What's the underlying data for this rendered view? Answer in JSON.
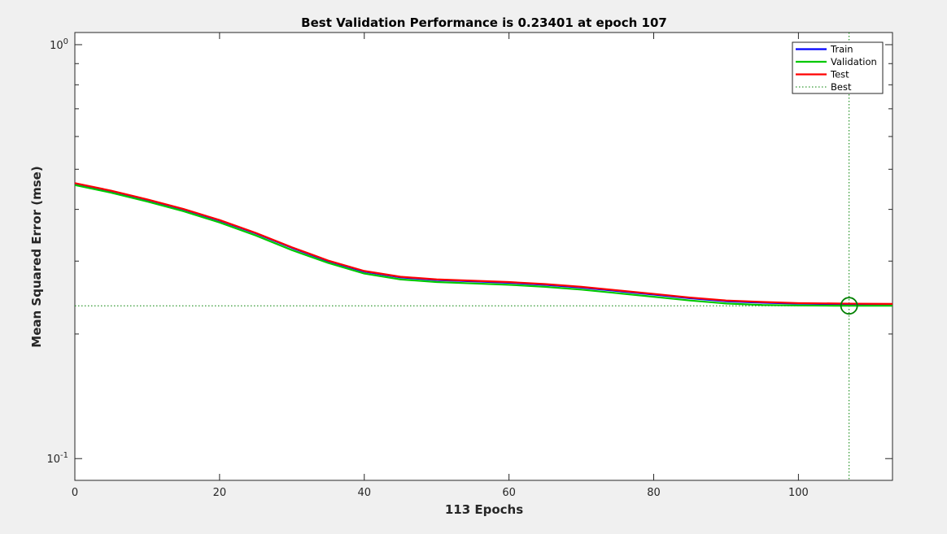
{
  "chart_data": {
    "type": "line",
    "title": "Best Validation Performance is 0.23401 at epoch 107",
    "xlabel": "113 Epochs",
    "ylabel": "Mean Squared Error  (mse)",
    "xlim": [
      0,
      113
    ],
    "ylim": [
      0.0886,
      1.07
    ],
    "yscale": "log",
    "grid": false,
    "legend_position": "top-right",
    "x_ticks": [
      0,
      20,
      40,
      60,
      80,
      100
    ],
    "y_ticks": [
      {
        "value": 1.0,
        "base": "10",
        "exp": "0"
      },
      {
        "value": 0.1,
        "base": "10",
        "exp": "-1"
      }
    ],
    "x": [
      0,
      5,
      10,
      15,
      20,
      25,
      30,
      35,
      40,
      45,
      50,
      55,
      60,
      65,
      70,
      75,
      80,
      85,
      90,
      95,
      100,
      105,
      107,
      110,
      113
    ],
    "series": [
      {
        "name": "Train",
        "color": "#0000ff",
        "dash": "solid",
        "values": [
          0.462,
          0.443,
          0.422,
          0.4,
          0.376,
          0.35,
          0.323,
          0.3,
          0.283,
          0.274,
          0.27,
          0.268,
          0.266,
          0.263,
          0.259,
          0.254,
          0.249,
          0.244,
          0.24,
          0.238,
          0.2368,
          0.2362,
          0.236,
          0.2358,
          0.2357
        ]
      },
      {
        "name": "Validation",
        "color": "#00c800",
        "dash": "solid",
        "values": [
          0.458,
          0.439,
          0.418,
          0.396,
          0.372,
          0.346,
          0.319,
          0.297,
          0.28,
          0.271,
          0.267,
          0.265,
          0.263,
          0.26,
          0.256,
          0.251,
          0.246,
          0.241,
          0.237,
          0.235,
          0.2344,
          0.2341,
          0.23401,
          0.234,
          0.234
        ]
      },
      {
        "name": "Test",
        "color": "#ff0000",
        "dash": "solid",
        "values": [
          0.463,
          0.444,
          0.423,
          0.401,
          0.377,
          0.351,
          0.324,
          0.301,
          0.284,
          0.275,
          0.271,
          0.269,
          0.267,
          0.264,
          0.26,
          0.255,
          0.25,
          0.245,
          0.241,
          0.239,
          0.2375,
          0.237,
          0.2368,
          0.2366,
          0.2365
        ]
      },
      {
        "name": "Best",
        "color": "#008000",
        "dash": "dotted",
        "best_epoch": 107,
        "best_value": 0.23401
      }
    ]
  }
}
